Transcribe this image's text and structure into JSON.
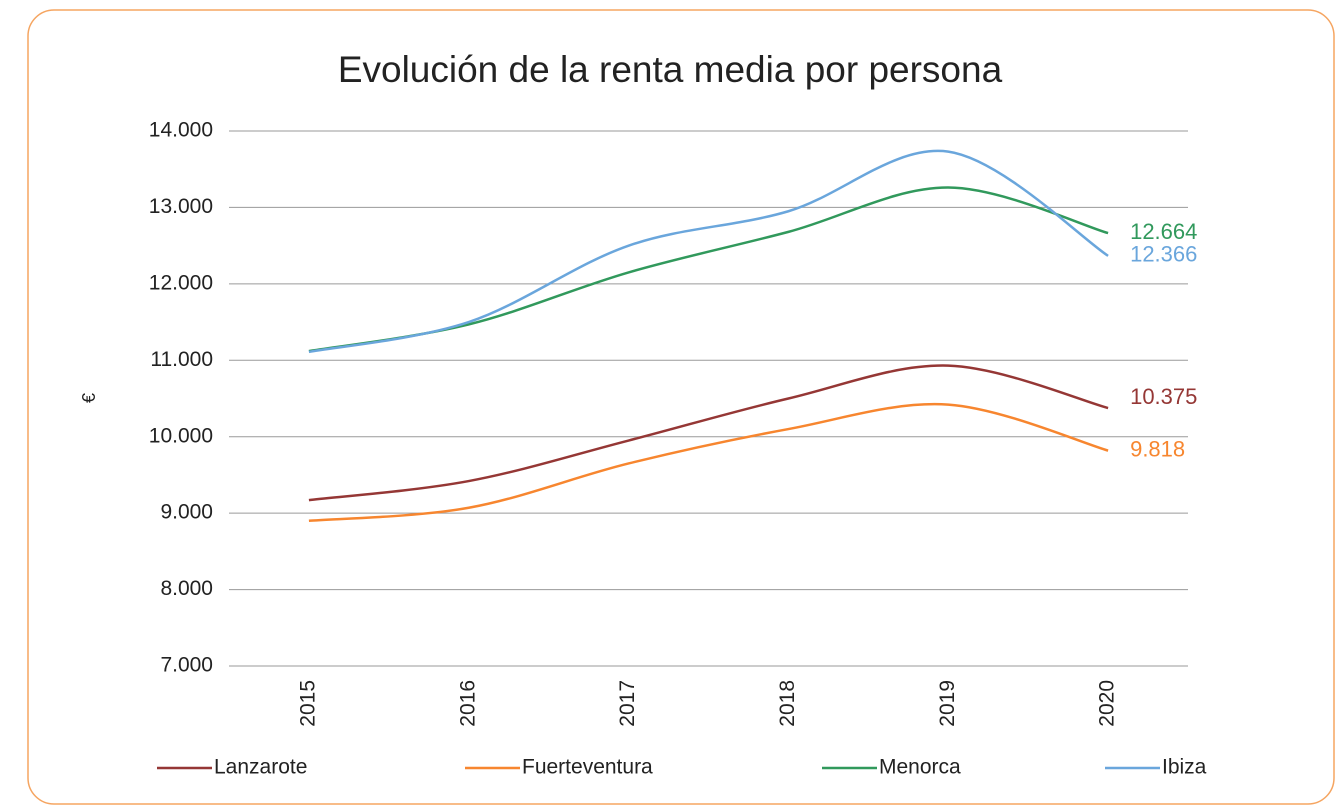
{
  "chart_data": {
    "type": "line",
    "title": "Evolución de la renta media por persona",
    "y_label": "€",
    "categories": [
      "2015",
      "2016",
      "2017",
      "2018",
      "2019",
      "2020"
    ],
    "series": [
      {
        "name": "Lanzarote",
        "color": "#953735",
        "values": [
          9170,
          9420,
          9950,
          10500,
          10930,
          10375
        ],
        "value_labels": [
          null,
          null,
          null,
          null,
          null,
          "10.375"
        ]
      },
      {
        "name": "Fuerteventura",
        "color": "#f7862f",
        "values": [
          8900,
          9070,
          9650,
          10100,
          10420,
          9818
        ],
        "value_labels": [
          null,
          null,
          null,
          null,
          null,
          "9.818"
        ]
      },
      {
        "name": "Menorca",
        "color": "#31995c",
        "values": [
          11120,
          11470,
          12150,
          12680,
          13260,
          12664
        ],
        "value_labels": [
          null,
          null,
          null,
          null,
          null,
          "12.664"
        ]
      },
      {
        "name": "Ibiza",
        "color": "#6aa6dc",
        "values": [
          11110,
          11500,
          12500,
          12950,
          13730,
          12366
        ],
        "value_labels": [
          null,
          null,
          null,
          null,
          null,
          "12.366"
        ]
      }
    ],
    "ylim": [
      7000,
      14000
    ],
    "yticks": [
      {
        "value": 7000,
        "label": "7.000"
      },
      {
        "value": 8000,
        "label": "8.000"
      },
      {
        "value": 9000,
        "label": "9.000"
      },
      {
        "value": 10000,
        "label": "10.000"
      },
      {
        "value": 11000,
        "label": "11.000"
      },
      {
        "value": 12000,
        "label": "12.000"
      },
      {
        "value": 13000,
        "label": "13.000"
      },
      {
        "value": 14000,
        "label": "14.000"
      }
    ],
    "grid": true,
    "legend": "bottom"
  }
}
